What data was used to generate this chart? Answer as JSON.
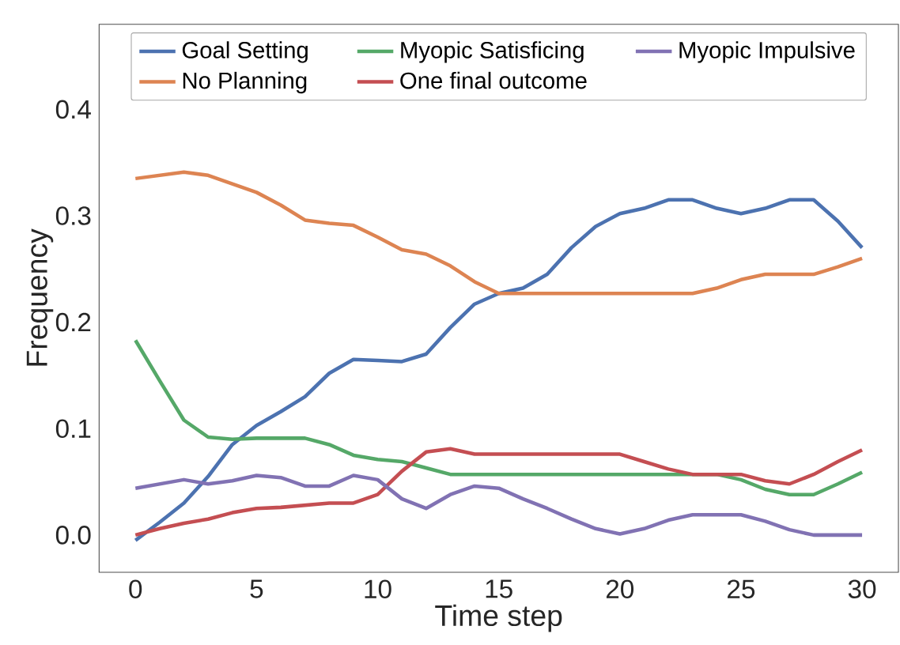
{
  "chart_data": {
    "type": "line",
    "xlabel": "Time step",
    "ylabel": "Frequency",
    "x": [
      0,
      1,
      2,
      3,
      4,
      5,
      6,
      7,
      8,
      9,
      10,
      11,
      12,
      13,
      14,
      15,
      16,
      17,
      18,
      19,
      20,
      21,
      22,
      23,
      24,
      25,
      26,
      27,
      28,
      29,
      30
    ],
    "xlim": [
      -1.5,
      31.5
    ],
    "xticks": [
      0,
      5,
      10,
      15,
      20,
      25,
      30
    ],
    "ylim": [
      -0.035,
      0.48
    ],
    "yticks": [
      {
        "value": 0,
        "label": "0.0"
      },
      {
        "value": 0.1,
        "label": "0.1"
      },
      {
        "value": 0.2,
        "label": "0.2"
      },
      {
        "value": 0.3,
        "label": "0.3"
      },
      {
        "value": 0.4,
        "label": "0.4"
      }
    ],
    "grid": false,
    "legend": "top",
    "marker": "none",
    "line_style": "solid",
    "series": [
      {
        "name": "Goal Setting",
        "color": "#4c72b0",
        "values": [
          -0.005,
          0.012,
          0.03,
          0.055,
          0.085,
          0.103,
          0.116,
          0.13,
          0.152,
          0.165,
          0.164,
          0.163,
          0.17,
          0.195,
          0.217,
          0.227,
          0.232,
          0.245,
          0.27,
          0.29,
          0.302,
          0.307,
          0.315,
          0.315,
          0.307,
          0.302,
          0.307,
          0.315,
          0.315,
          0.295,
          0.27
        ]
      },
      {
        "name": "No Planning",
        "color": "#dd8452",
        "values": [
          0.335,
          0.338,
          0.341,
          0.338,
          0.33,
          0.322,
          0.31,
          0.296,
          0.293,
          0.291,
          0.28,
          0.268,
          0.264,
          0.253,
          0.238,
          0.227,
          0.227,
          0.227,
          0.227,
          0.227,
          0.227,
          0.227,
          0.227,
          0.227,
          0.232,
          0.24,
          0.245,
          0.245,
          0.245,
          0.252,
          0.26
        ]
      },
      {
        "name": "Myopic Satisficing",
        "color": "#55a868",
        "values": [
          0.183,
          0.145,
          0.108,
          0.092,
          0.09,
          0.091,
          0.091,
          0.091,
          0.085,
          0.075,
          0.071,
          0.069,
          0.063,
          0.057,
          0.057,
          0.057,
          0.057,
          0.057,
          0.057,
          0.057,
          0.057,
          0.057,
          0.057,
          0.057,
          0.057,
          0.052,
          0.043,
          0.038,
          0.038,
          0.048,
          0.059
        ]
      },
      {
        "name": "One final outcome",
        "color": "#c44e52",
        "values": [
          0.0,
          0.006,
          0.011,
          0.015,
          0.021,
          0.025,
          0.026,
          0.028,
          0.03,
          0.03,
          0.038,
          0.06,
          0.078,
          0.081,
          0.076,
          0.076,
          0.076,
          0.076,
          0.076,
          0.076,
          0.076,
          0.069,
          0.062,
          0.057,
          0.057,
          0.057,
          0.051,
          0.048,
          0.057,
          0.069,
          0.08
        ]
      },
      {
        "name": "Myopic Impulsive",
        "color": "#8172b3",
        "values": [
          0.044,
          0.048,
          0.052,
          0.048,
          0.051,
          0.056,
          0.054,
          0.046,
          0.046,
          0.056,
          0.052,
          0.034,
          0.025,
          0.038,
          0.046,
          0.044,
          0.034,
          0.025,
          0.015,
          0.006,
          0.001,
          0.006,
          0.014,
          0.019,
          0.019,
          0.019,
          0.013,
          0.005,
          0.0,
          0.0,
          0.0
        ]
      }
    ]
  }
}
